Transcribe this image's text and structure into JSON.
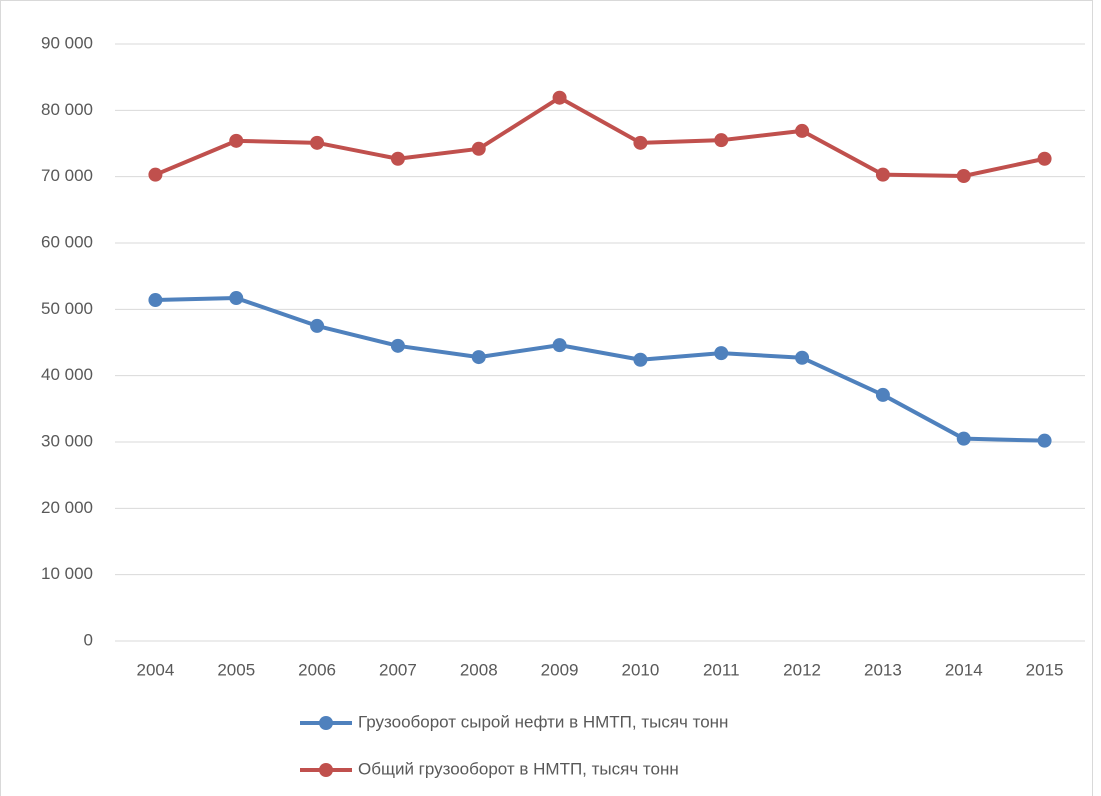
{
  "chart_data": {
    "type": "line",
    "categories": [
      "2004",
      "2005",
      "2006",
      "2007",
      "2008",
      "2009",
      "2010",
      "2011",
      "2012",
      "2013",
      "2014",
      "2015"
    ],
    "series": [
      {
        "name": "Грузооборот сырой нефти в НМТП, тысяч тонн",
        "color": "#4f81bd",
        "values": [
          51400,
          51700,
          47500,
          44500,
          42800,
          44600,
          42400,
          43400,
          42700,
          37100,
          30500,
          30200
        ]
      },
      {
        "name": "Общий грузооборот в НМТП, тысяч тонн",
        "color": "#c0504d",
        "values": [
          70300,
          75400,
          75100,
          72700,
          74200,
          81900,
          75100,
          75500,
          76900,
          70300,
          70100,
          72700
        ]
      }
    ],
    "ylim": [
      0,
      90000
    ],
    "yticks": [
      0,
      {
        "value": 10000,
        "label": "10 000"
      },
      {
        "value": 20000,
        "label": "20 000"
      },
      {
        "value": 30000,
        "label": "30 000"
      },
      {
        "value": 40000,
        "label": "40 000"
      },
      {
        "value": 50000,
        "label": "50 000"
      },
      {
        "value": 60000,
        "label": "60 000"
      },
      {
        "value": 70000,
        "label": "70 000"
      },
      {
        "value": 80000,
        "label": "80 000"
      },
      {
        "value": 90000,
        "label": "90 000"
      }
    ],
    "grid": true,
    "legend": "bottom"
  }
}
